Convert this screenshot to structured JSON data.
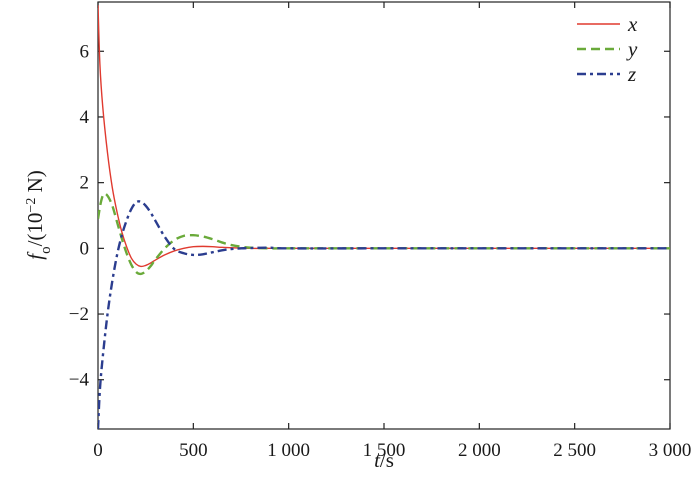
{
  "chart_data": {
    "type": "line",
    "xlim": [
      0,
      3000
    ],
    "ylim": [
      -5.5,
      7.5
    ],
    "x_ticks": [
      {
        "value": 0,
        "label": "0"
      },
      {
        "value": 500,
        "label": "500"
      },
      {
        "value": 1000,
        "label": "1 000"
      },
      {
        "value": 1500,
        "label": "1 500"
      },
      {
        "value": 2000,
        "label": "2 000"
      },
      {
        "value": 2500,
        "label": "2 500"
      },
      {
        "value": 3000,
        "label": "3 000"
      }
    ],
    "y_ticks": [
      {
        "value": -4,
        "label": "−4"
      },
      {
        "value": -2,
        "label": "−2"
      },
      {
        "value": 0,
        "label": "0"
      },
      {
        "value": 2,
        "label": "2"
      },
      {
        "value": 4,
        "label": "4"
      },
      {
        "value": 6,
        "label": "6"
      }
    ],
    "xlabel": {
      "var": "t",
      "unit": "/s"
    },
    "ylabel": {
      "var": "f",
      "sub": "o",
      "unit_a": "/(10",
      "sup": "−2",
      "unit_b": " N)"
    },
    "legend_position": "top-right",
    "grid": false,
    "series": [
      {
        "name": "x",
        "color": "#e03a2f",
        "style": "solid",
        "x": [
          0,
          10,
          25,
          50,
          75,
          100,
          125,
          150,
          175,
          200,
          225,
          250,
          275,
          300,
          350,
          400,
          450,
          500,
          550,
          600,
          650,
          700,
          800,
          900,
          1000,
          1500,
          2000,
          2500,
          3000
        ],
        "y": [
          7.4,
          5.6,
          4.3,
          2.9,
          1.85,
          1.1,
          0.5,
          0.05,
          -0.3,
          -0.48,
          -0.55,
          -0.52,
          -0.45,
          -0.36,
          -0.2,
          -0.08,
          0.0,
          0.05,
          0.06,
          0.05,
          0.03,
          0.02,
          0.0,
          0.0,
          0.0,
          0.0,
          0.0,
          0.0,
          0.0
        ]
      },
      {
        "name": "y",
        "color": "#6aaa3a",
        "style": "dashed",
        "x": [
          0,
          15,
          30,
          50,
          75,
          100,
          125,
          150,
          175,
          200,
          225,
          250,
          275,
          300,
          350,
          400,
          450,
          500,
          550,
          600,
          650,
          700,
          750,
          800,
          900,
          1000,
          1500,
          2000,
          2500,
          3000
        ],
        "y": [
          0.9,
          1.4,
          1.65,
          1.6,
          1.3,
          0.8,
          0.3,
          -0.15,
          -0.5,
          -0.72,
          -0.78,
          -0.7,
          -0.55,
          -0.35,
          0.0,
          0.25,
          0.38,
          0.4,
          0.36,
          0.28,
          0.18,
          0.1,
          0.05,
          0.02,
          0.0,
          0.0,
          0.0,
          0.0,
          0.0,
          0.0
        ]
      },
      {
        "name": "z",
        "color": "#2b3d8f",
        "style": "dashdot",
        "x": [
          0,
          10,
          25,
          50,
          75,
          100,
          125,
          150,
          175,
          200,
          225,
          250,
          275,
          300,
          350,
          400,
          450,
          500,
          550,
          600,
          650,
          700,
          750,
          800,
          900,
          1000,
          1500,
          2000,
          2500,
          3000
        ],
        "y": [
          -5.5,
          -4.3,
          -3.3,
          -2.0,
          -1.0,
          -0.2,
          0.4,
          0.85,
          1.2,
          1.4,
          1.42,
          1.3,
          1.1,
          0.85,
          0.35,
          -0.02,
          -0.15,
          -0.2,
          -0.18,
          -0.12,
          -0.06,
          -0.02,
          0.0,
          0.01,
          0.02,
          0.0,
          0.0,
          0.0,
          0.0,
          0.0
        ]
      }
    ]
  }
}
